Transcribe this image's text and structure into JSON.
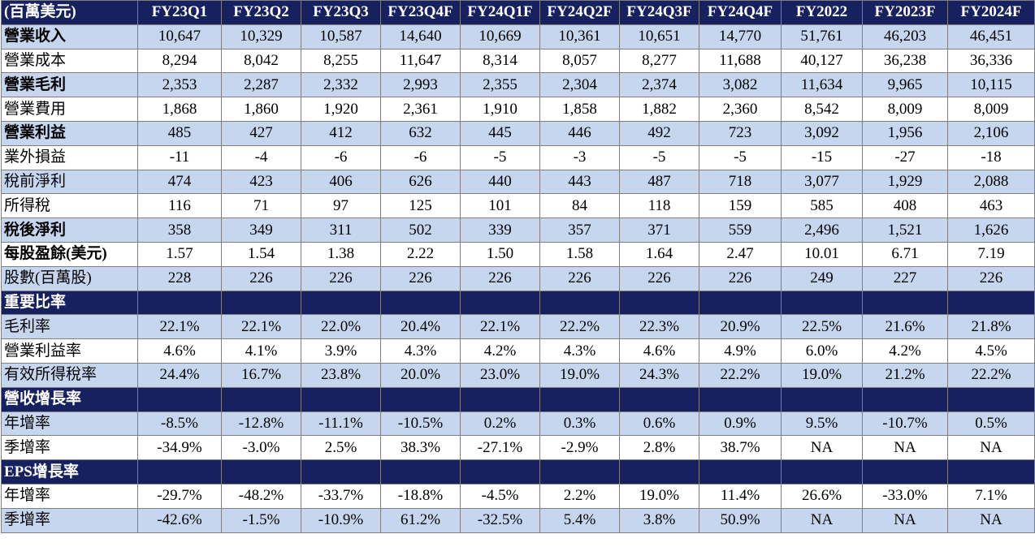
{
  "header": {
    "unit": "(百萬美元)",
    "columns": [
      "FY23Q1",
      "FY23Q2",
      "FY23Q3",
      "FY23Q4F",
      "FY24Q1F",
      "FY24Q2F",
      "FY24Q3F",
      "FY24Q4F",
      "FY2022",
      "FY2023F",
      "FY2024F"
    ]
  },
  "rows": [
    {
      "type": "data",
      "shade": true,
      "bold": true,
      "label": "營業收入",
      "values": [
        "10,647",
        "10,329",
        "10,587",
        "14,640",
        "10,669",
        "10,361",
        "10,651",
        "14,770",
        "51,761",
        "46,203",
        "46,451"
      ]
    },
    {
      "type": "data",
      "shade": false,
      "bold": false,
      "label": "營業成本",
      "values": [
        "8,294",
        "8,042",
        "8,255",
        "11,647",
        "8,314",
        "8,057",
        "8,277",
        "11,688",
        "40,127",
        "36,238",
        "36,336"
      ]
    },
    {
      "type": "data",
      "shade": true,
      "bold": true,
      "label": "營業毛利",
      "values": [
        "2,353",
        "2,287",
        "2,332",
        "2,993",
        "2,355",
        "2,304",
        "2,374",
        "3,082",
        "11,634",
        "9,965",
        "10,115"
      ]
    },
    {
      "type": "data",
      "shade": false,
      "bold": false,
      "label": "營業費用",
      "values": [
        "1,868",
        "1,860",
        "1,920",
        "2,361",
        "1,910",
        "1,858",
        "1,882",
        "2,360",
        "8,542",
        "8,009",
        "8,009"
      ]
    },
    {
      "type": "data",
      "shade": true,
      "bold": true,
      "label": "營業利益",
      "values": [
        "485",
        "427",
        "412",
        "632",
        "445",
        "446",
        "492",
        "723",
        "3,092",
        "1,956",
        "2,106"
      ]
    },
    {
      "type": "data",
      "shade": false,
      "bold": false,
      "label": "業外損益",
      "values": [
        "-11",
        "-4",
        "-6",
        "-6",
        "-5",
        "-3",
        "-5",
        "-5",
        "-15",
        "-27",
        "-18"
      ]
    },
    {
      "type": "data",
      "shade": true,
      "bold": false,
      "label": "稅前淨利",
      "values": [
        "474",
        "423",
        "406",
        "626",
        "440",
        "443",
        "487",
        "718",
        "3,077",
        "1,929",
        "2,088"
      ]
    },
    {
      "type": "data",
      "shade": false,
      "bold": false,
      "label": "所得稅",
      "values": [
        "116",
        "71",
        "97",
        "125",
        "101",
        "84",
        "118",
        "159",
        "585",
        "408",
        "463"
      ]
    },
    {
      "type": "data",
      "shade": true,
      "bold": true,
      "label": "稅後淨利",
      "values": [
        "358",
        "349",
        "311",
        "502",
        "339",
        "357",
        "371",
        "559",
        "2,496",
        "1,521",
        "1,626"
      ]
    },
    {
      "type": "data",
      "shade": false,
      "bold": true,
      "label": "每股盈餘(美元)",
      "values": [
        "1.57",
        "1.54",
        "1.38",
        "2.22",
        "1.50",
        "1.58",
        "1.64",
        "2.47",
        "10.01",
        "6.71",
        "7.19"
      ]
    },
    {
      "type": "data",
      "shade": true,
      "bold": false,
      "label": "股數(百萬股)",
      "values": [
        "228",
        "226",
        "226",
        "226",
        "226",
        "226",
        "226",
        "226",
        "249",
        "227",
        "226"
      ]
    },
    {
      "type": "section",
      "label": "重要比率"
    },
    {
      "type": "data",
      "shade": true,
      "bold": false,
      "label": "毛利率",
      "values": [
        "22.1%",
        "22.1%",
        "22.0%",
        "20.4%",
        "22.1%",
        "22.2%",
        "22.3%",
        "20.9%",
        "22.5%",
        "21.6%",
        "21.8%"
      ]
    },
    {
      "type": "data",
      "shade": false,
      "bold": false,
      "label": "營業利益率",
      "values": [
        "4.6%",
        "4.1%",
        "3.9%",
        "4.3%",
        "4.2%",
        "4.3%",
        "4.6%",
        "4.9%",
        "6.0%",
        "4.2%",
        "4.5%"
      ]
    },
    {
      "type": "data",
      "shade": true,
      "bold": false,
      "label": "有效所得稅率",
      "values": [
        "24.4%",
        "16.7%",
        "23.8%",
        "20.0%",
        "23.0%",
        "19.0%",
        "24.3%",
        "22.2%",
        "19.0%",
        "21.2%",
        "22.2%"
      ]
    },
    {
      "type": "section",
      "label": "營收增長率"
    },
    {
      "type": "data",
      "shade": true,
      "bold": false,
      "label": "年增率",
      "values": [
        "-8.5%",
        "-12.8%",
        "-11.1%",
        "-10.5%",
        "0.2%",
        "0.3%",
        "0.6%",
        "0.9%",
        "9.5%",
        "-10.7%",
        "0.5%"
      ]
    },
    {
      "type": "data",
      "shade": false,
      "bold": false,
      "label": "季增率",
      "values": [
        "-34.9%",
        "-3.0%",
        "2.5%",
        "38.3%",
        "-27.1%",
        "-2.9%",
        "2.8%",
        "38.7%",
        "NA",
        "NA",
        "NA"
      ]
    },
    {
      "type": "section",
      "label": "EPS增長率"
    },
    {
      "type": "data",
      "shade": false,
      "bold": false,
      "label": "年增率",
      "values": [
        "-29.7%",
        "-48.2%",
        "-33.7%",
        "-18.8%",
        "-4.5%",
        "2.2%",
        "19.0%",
        "11.4%",
        "26.6%",
        "-33.0%",
        "7.1%"
      ]
    },
    {
      "type": "data",
      "shade": true,
      "bold": false,
      "label": "季增率",
      "values": [
        "-42.6%",
        "-1.5%",
        "-10.9%",
        "61.2%",
        "-32.5%",
        "5.4%",
        "3.8%",
        "50.9%",
        "NA",
        "NA",
        "NA"
      ]
    }
  ],
  "colors": {
    "header_bg": "#17215f",
    "header_text": "#ffffff",
    "row_shade": "#c6d6ef",
    "row_plain": "#ffffff",
    "grid": "#7f7f7f"
  }
}
